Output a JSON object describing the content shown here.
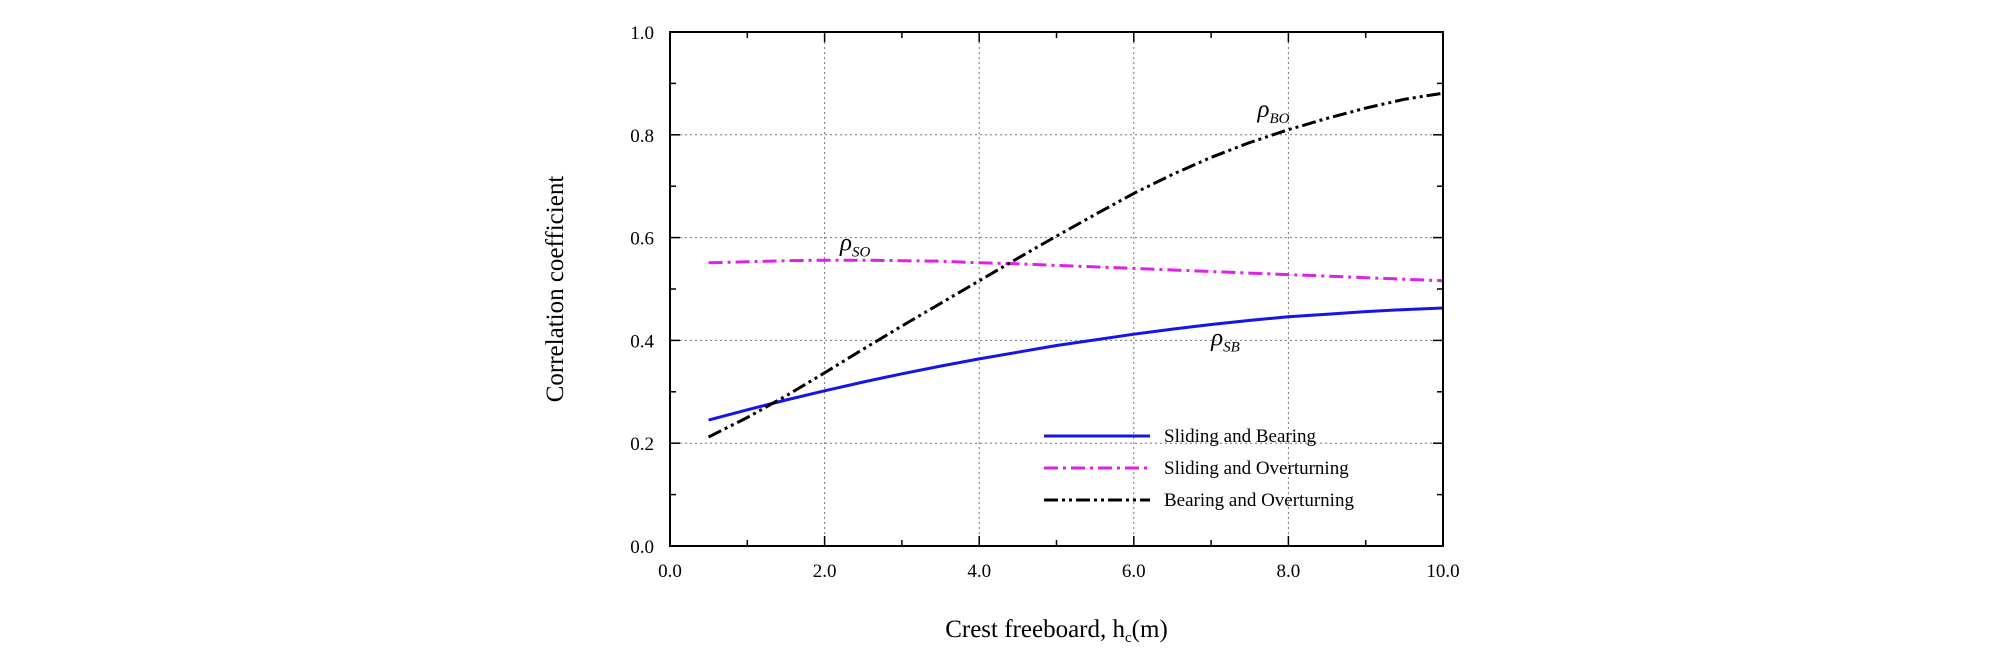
{
  "chart_data": {
    "type": "line",
    "xlabel": "Crest freeboard,  h",
    "xlabel_sub": "c",
    "xlabel_unit": "(m)",
    "ylabel": "Correlation coefficient",
    "xlim": [
      0.0,
      10.0
    ],
    "ylim": [
      0.0,
      1.0
    ],
    "xticks": [
      "0.0",
      "2.0",
      "4.0",
      "6.0",
      "8.0",
      "10.0"
    ],
    "yticks": [
      "0.0",
      "0.2",
      "0.4",
      "0.6",
      "0.8",
      "1.0"
    ],
    "grid": true,
    "legend_position": "bottom-right",
    "series": [
      {
        "name": "Sliding and Bearing",
        "color": "#1515e8",
        "dash": "solid",
        "annotation": {
          "symbol": "ρ",
          "sub": "SB",
          "at": [
            7.0,
            0.39
          ]
        },
        "x": [
          0.5,
          1.0,
          1.5,
          2.0,
          2.5,
          3.0,
          3.5,
          4.0,
          4.5,
          5.0,
          5.5,
          6.0,
          6.5,
          7.0,
          7.5,
          8.0,
          8.5,
          9.0,
          9.5,
          10.0
        ],
        "y": [
          0.245,
          0.265,
          0.284,
          0.302,
          0.319,
          0.335,
          0.35,
          0.364,
          0.377,
          0.39,
          0.401,
          0.412,
          0.422,
          0.431,
          0.439,
          0.446,
          0.451,
          0.456,
          0.46,
          0.463
        ]
      },
      {
        "name": "Sliding and Overturning",
        "color": "#e020e8",
        "dash": "dashdot",
        "annotation": {
          "symbol": "ρ",
          "sub": "SO",
          "at": [
            2.2,
            0.575
          ]
        },
        "x": [
          0.5,
          1.0,
          1.5,
          2.0,
          2.5,
          3.0,
          3.5,
          4.0,
          4.5,
          5.0,
          5.5,
          6.0,
          6.5,
          7.0,
          7.5,
          8.0,
          8.5,
          9.0,
          9.5,
          10.0
        ],
        "y": [
          0.551,
          0.553,
          0.555,
          0.556,
          0.556,
          0.555,
          0.554,
          0.551,
          0.549,
          0.546,
          0.543,
          0.54,
          0.537,
          0.534,
          0.531,
          0.528,
          0.525,
          0.522,
          0.519,
          0.516
        ]
      },
      {
        "name": "Bearing and Overturning",
        "color": "#000000",
        "dash": "dashdotdot",
        "annotation": {
          "symbol": "ρ",
          "sub": "BO",
          "at": [
            7.6,
            0.835
          ]
        },
        "x": [
          0.5,
          1.0,
          1.5,
          2.0,
          2.5,
          3.0,
          3.5,
          4.0,
          4.5,
          5.0,
          5.5,
          6.0,
          6.5,
          7.0,
          7.5,
          8.0,
          8.5,
          9.0,
          9.5,
          10.0
        ],
        "y": [
          0.212,
          0.25,
          0.292,
          0.337,
          0.383,
          0.428,
          0.472,
          0.516,
          0.56,
          0.603,
          0.645,
          0.686,
          0.723,
          0.756,
          0.785,
          0.81,
          0.832,
          0.852,
          0.869,
          0.881
        ]
      }
    ]
  }
}
